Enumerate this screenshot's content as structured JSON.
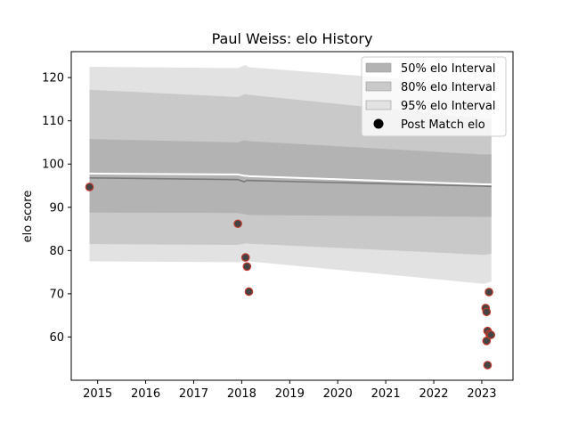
{
  "chart_data": {
    "type": "area",
    "title": "Paul Weiss: elo History",
    "xlabel": "",
    "ylabel": "elo score",
    "xlim": [
      2014.45,
      2023.65
    ],
    "ylim": [
      50,
      126
    ],
    "x_ticks": [
      "2015",
      "2016",
      "2017",
      "2018",
      "2019",
      "2020",
      "2021",
      "2022",
      "2023"
    ],
    "y_ticks": [
      "60",
      "70",
      "80",
      "90",
      "100",
      "110",
      "120"
    ],
    "legend_position": "top-right",
    "grid": false,
    "legend": [
      {
        "label": "50% elo Interval",
        "color": "#b3b3b3",
        "kind": "patch"
      },
      {
        "label": "80% elo Interval",
        "color": "#c9c9c9",
        "kind": "patch"
      },
      {
        "label": "95% elo Interval",
        "color": "#e2e2e2",
        "kind": "patch"
      },
      {
        "label": "Post Match elo",
        "color": "#000000",
        "kind": "marker"
      }
    ],
    "x": [
      2014.83,
      2017.92,
      2018.05,
      2018.1,
      2018.15,
      2023.05,
      2023.2
    ],
    "series": [
      {
        "name": "95% elo Interval",
        "role": "band",
        "color": "#e2e2e2",
        "lower": [
          77.5,
          77.3,
          77.5,
          77.5,
          77.5,
          72.3,
          72.8
        ],
        "upper": [
          122.5,
          122.2,
          122.8,
          122.8,
          122.4,
          118.2,
          118.2
        ]
      },
      {
        "name": "80% elo Interval",
        "role": "band",
        "color": "#c9c9c9",
        "lower": [
          81.5,
          81.3,
          81.6,
          81.7,
          81.6,
          79.0,
          79.3
        ],
        "upper": [
          117.2,
          115.5,
          116.1,
          116.2,
          116.0,
          110.5,
          110.5
        ]
      },
      {
        "name": "50% elo Interval",
        "role": "band",
        "color": "#b3b3b3",
        "lower": [
          88.8,
          88.7,
          88.4,
          88.3,
          88.2,
          87.8,
          87.8
        ],
        "upper": [
          105.8,
          105.0,
          105.5,
          105.4,
          105.3,
          102.2,
          102.3
        ]
      },
      {
        "name": "",
        "role": "line",
        "color": "#ffffff",
        "values": [
          97.8,
          97.6,
          97.3,
          97.3,
          97.2,
          95.3,
          95.3
        ]
      },
      {
        "name": "",
        "role": "line",
        "color": "#7a7a7a",
        "values": [
          96.8,
          96.4,
          95.9,
          96.2,
          96.2,
          94.9,
          94.8
        ]
      }
    ],
    "points": {
      "name": "Post Match elo",
      "fill": "#444444",
      "edge": "#c0392b",
      "x": [
        2014.83,
        2017.92,
        2018.08,
        2018.11,
        2018.15,
        2023.08,
        2023.1,
        2023.12,
        2023.15,
        2023.16,
        2023.19,
        2023.1
      ],
      "y": [
        94.7,
        86.2,
        78.4,
        76.3,
        70.5,
        66.7,
        65.8,
        61.4,
        70.4,
        60.7,
        60.5,
        59.1
      ]
    },
    "points_extra": {
      "x": [
        2023.12
      ],
      "y": [
        53.5
      ]
    }
  }
}
